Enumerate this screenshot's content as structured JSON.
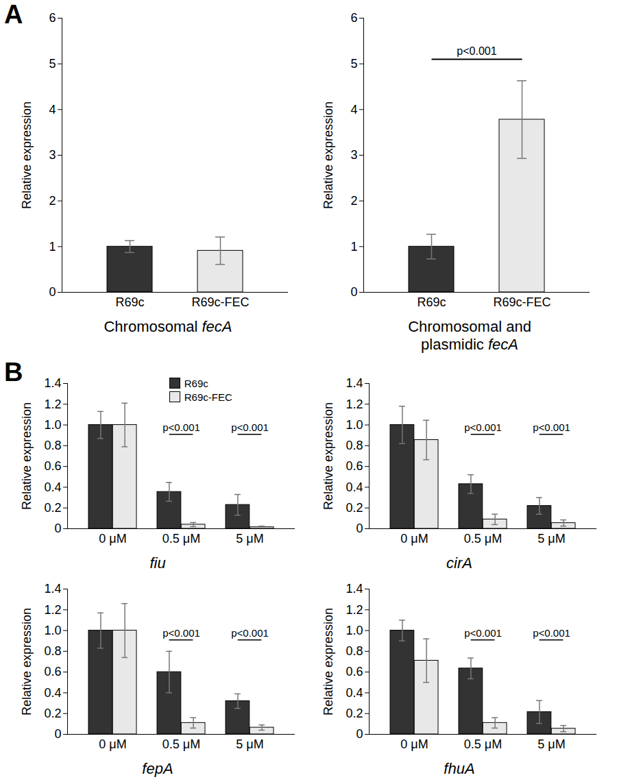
{
  "chart_data": [
    {
      "type": "bar",
      "panel": "A",
      "y_label": "Relative expression",
      "x_label": "Chromosomal fecA",
      "categories": [
        "R69c",
        "R69c-FEC"
      ],
      "values": [
        1.0,
        0.91
      ],
      "errors": [
        0.13,
        0.3
      ],
      "colors": [
        "#333333",
        "#e8e8e8"
      ],
      "ylim": [
        0,
        6
      ],
      "yticks": [
        0,
        1,
        2,
        3,
        4,
        5,
        6
      ]
    },
    {
      "type": "bar",
      "y_label": "Relative expression",
      "x_label": "Chromosomal and plasmidic fecA",
      "categories": [
        "R69c",
        "R69c-FEC"
      ],
      "values": [
        1.0,
        3.78
      ],
      "errors": [
        0.27,
        0.85
      ],
      "colors": [
        "#333333",
        "#e8e8e8"
      ],
      "ylim": [
        0,
        6
      ],
      "yticks": [
        0,
        1,
        2,
        3,
        4,
        5,
        6
      ],
      "annotations": [
        {
          "text": "p<0.001",
          "from": "R69c",
          "to": "R69c-FEC"
        }
      ]
    },
    {
      "type": "grouped_bar",
      "panel": "B",
      "y_label": "Relative expression",
      "x_label": "fiu",
      "legend": "top-right",
      "categories": [
        "0 μM",
        "0.5 μM",
        "5 μM"
      ],
      "series": [
        {
          "name": "R69c",
          "color": "#333333",
          "values": [
            1.0,
            0.355,
            0.23
          ],
          "errors": [
            0.13,
            0.09,
            0.1
          ]
        },
        {
          "name": "R69c-FEC",
          "color": "#e8e8e8",
          "values": [
            1.0,
            0.04,
            0.015
          ],
          "errors": [
            0.21,
            0.02,
            0.01
          ]
        }
      ],
      "ylim": [
        0,
        1.4
      ],
      "yticks": [
        0,
        0.2,
        0.4,
        0.6,
        0.8,
        {
          "value": 1,
          "label": "1.0"
        },
        1.2,
        1.4
      ],
      "annotations": [
        {
          "text": "p<0.001",
          "category": "0.5 μM"
        },
        {
          "text": "p<0.001",
          "category": "5 μM"
        }
      ]
    },
    {
      "type": "grouped_bar",
      "y_label": "Relative expression",
      "x_label": "cirA",
      "categories": [
        "0 μM",
        "0.5 μM",
        "5 μM"
      ],
      "series": [
        {
          "name": "R69c",
          "color": "#333333",
          "values": [
            1.0,
            0.43,
            0.22
          ],
          "errors": [
            0.18,
            0.09,
            0.08
          ]
        },
        {
          "name": "R69c-FEC",
          "color": "#e8e8e8",
          "values": [
            0.855,
            0.09,
            0.055
          ],
          "errors": [
            0.19,
            0.05,
            0.03
          ]
        }
      ],
      "ylim": [
        0,
        1.4
      ],
      "yticks": [
        0,
        0.2,
        0.4,
        0.6,
        0.8,
        {
          "value": 1,
          "label": "1.0"
        },
        1.2,
        1.4
      ],
      "annotations": [
        {
          "text": "p<0.001",
          "category": "0.5 μM"
        },
        {
          "text": "p<0.001",
          "category": "5 μM"
        }
      ]
    },
    {
      "type": "grouped_bar",
      "y_label": "Relative expression",
      "x_label": "fepA",
      "categories": [
        "0 μM",
        "0.5 μM",
        "5 μM"
      ],
      "series": [
        {
          "name": "R69c",
          "color": "#333333",
          "values": [
            1.0,
            0.6,
            0.32
          ],
          "errors": [
            0.17,
            0.2,
            0.07
          ]
        },
        {
          "name": "R69c-FEC",
          "color": "#e8e8e8",
          "values": [
            1.0,
            0.11,
            0.065
          ],
          "errors": [
            0.26,
            0.05,
            0.025
          ]
        }
      ],
      "ylim": [
        0,
        1.4
      ],
      "yticks": [
        0,
        0.2,
        0.4,
        0.6,
        0.8,
        {
          "value": 1,
          "label": "1.0"
        },
        1.2,
        1.4
      ],
      "annotations": [
        {
          "text": "p<0.001",
          "category": "0.5 μM"
        },
        {
          "text": "p<0.001",
          "category": "5 μM"
        }
      ]
    },
    {
      "type": "grouped_bar",
      "y_label": "Relative expression",
      "x_label": "fhuA",
      "categories": [
        "0 μM",
        "0.5 μM",
        "5 μM"
      ],
      "series": [
        {
          "name": "R69c",
          "color": "#333333",
          "values": [
            1.0,
            0.635,
            0.215
          ],
          "errors": [
            0.1,
            0.1,
            0.11
          ]
        },
        {
          "name": "R69c-FEC",
          "color": "#e8e8e8",
          "values": [
            0.71,
            0.11,
            0.055
          ],
          "errors": [
            0.21,
            0.05,
            0.03
          ]
        }
      ],
      "ylim": [
        0,
        1.4
      ],
      "yticks": [
        0,
        0.2,
        0.4,
        0.6,
        0.8,
        {
          "value": 1,
          "label": "1.0"
        },
        1.2,
        1.4
      ],
      "annotations": [
        {
          "text": "p<0.001",
          "category": "0.5 μM"
        },
        {
          "text": "p<0.001",
          "category": "5 μM"
        }
      ]
    }
  ]
}
